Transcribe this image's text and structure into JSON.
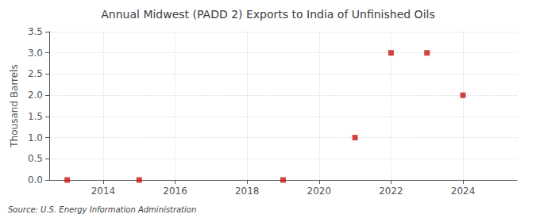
{
  "chart_data": {
    "type": "scatter",
    "title": "Annual Midwest (PADD 2) Exports to India of Unfinished Oils",
    "ylabel": "Thousand Barrels",
    "annotation": "Source: U.S. Energy Information Administration",
    "x": [
      2013,
      2015,
      2019,
      2021,
      2022,
      2023,
      2024
    ],
    "values": [
      0,
      0,
      0,
      1,
      3,
      3,
      2
    ],
    "color": "#cc1111",
    "marker": "square",
    "xlim": [
      2012.5,
      2025.5
    ],
    "xticks": [
      2014,
      2016,
      2018,
      2020,
      2022,
      2024
    ],
    "ylim": [
      0,
      3.5
    ],
    "yticks": [
      {
        "value": 0,
        "label": "0.0"
      },
      0.5,
      {
        "value": 1,
        "label": "1.0"
      },
      1.5,
      {
        "value": 2,
        "label": "2.0"
      },
      2.5,
      {
        "value": 3,
        "label": "3.0"
      },
      3.5
    ],
    "grid": true
  }
}
